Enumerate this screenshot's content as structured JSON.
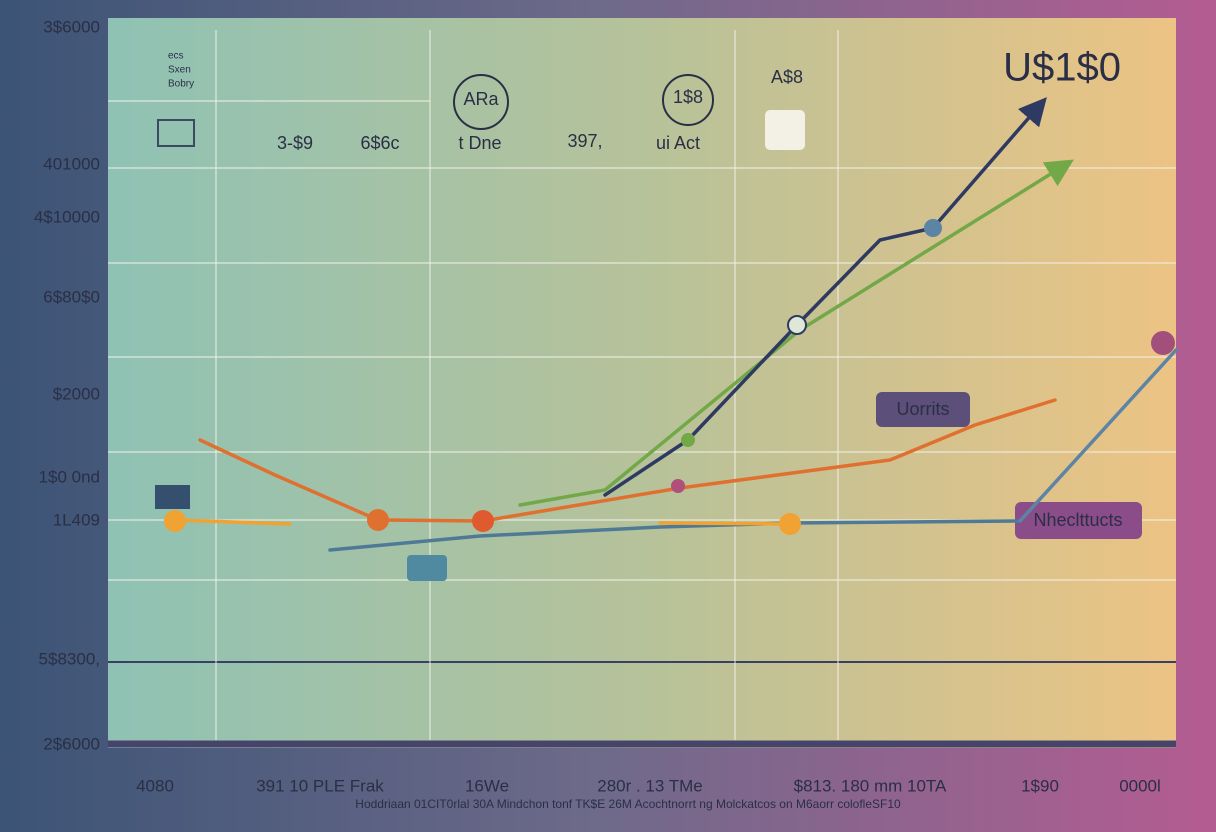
{
  "y_axis_labels": [
    "3$6000",
    "401000",
    "4$10000",
    "6$80$0",
    "$2000",
    "1$0 0nd",
    "1L409",
    "5$8300,",
    "2$6000"
  ],
  "header": {
    "badges": [
      "ARa",
      "1$8",
      "A$8"
    ],
    "big_label": "U$1$0",
    "legend": [
      "ecs",
      "Sxen",
      "Bobry"
    ],
    "row_labels": [
      "3-$9",
      "6$6c",
      "t Dne",
      "397,",
      "ui Act"
    ]
  },
  "annotations": [
    "Uorrits",
    "Nheclttucts"
  ],
  "x_axis_labels": [
    "4080",
    "391 10 PLE Frak",
    "16We",
    "280r . 13 TMe",
    "$813. 180 mm 10TA",
    "1$90",
    "0000l"
  ],
  "footnote": "Hoddriaan 01CIT0rlal 30A Mindchon tonf TK$E 26M Acochtnorrt ng Molckatcos on M6aorr colofleSF10"
}
